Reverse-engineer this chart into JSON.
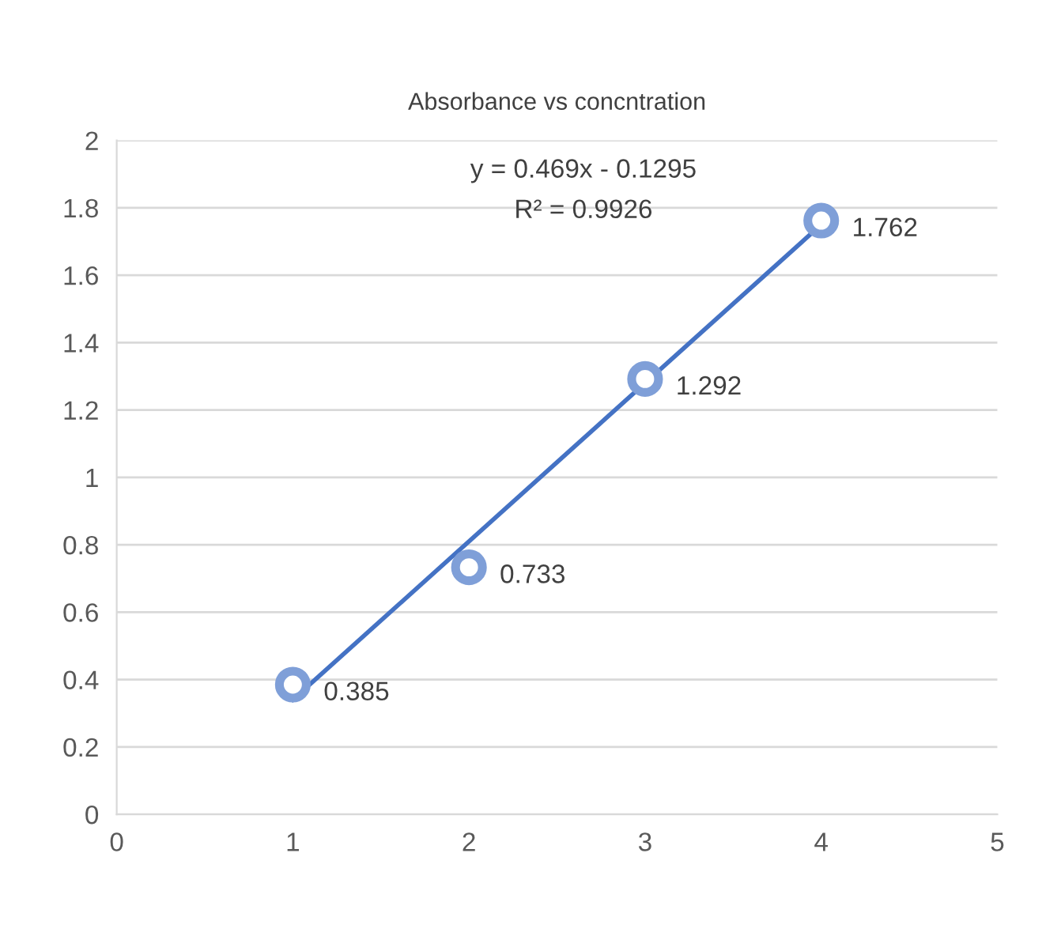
{
  "chart_data": {
    "type": "scatter",
    "title": "Absorbance vs concntration",
    "x": [
      1,
      2,
      3,
      4
    ],
    "series": [
      {
        "color": "#7f9fd8",
        "values": [
          0.385,
          0.733,
          1.292,
          1.762
        ],
        "marker": "circle",
        "data_labels": true
      },
      {
        "type": "line",
        "color": "#4472c4",
        "x": [
          1,
          4
        ],
        "values": [
          0.34,
          1.75
        ],
        "marker": "none",
        "line_style": "solid"
      }
    ],
    "xlim": [
      0,
      5
    ],
    "xticks": [
      0,
      1,
      2,
      3,
      4,
      5
    ],
    "ylim": [
      0,
      2
    ],
    "yticks": [
      0,
      0.2,
      0.4,
      0.6,
      0.8,
      1,
      1.2,
      1.4,
      1.6,
      1.8,
      2
    ],
    "grid": "y",
    "legend": false,
    "annotations": [
      "y = 0.469x - 0.1295",
      "R² = 0.9926"
    ]
  }
}
